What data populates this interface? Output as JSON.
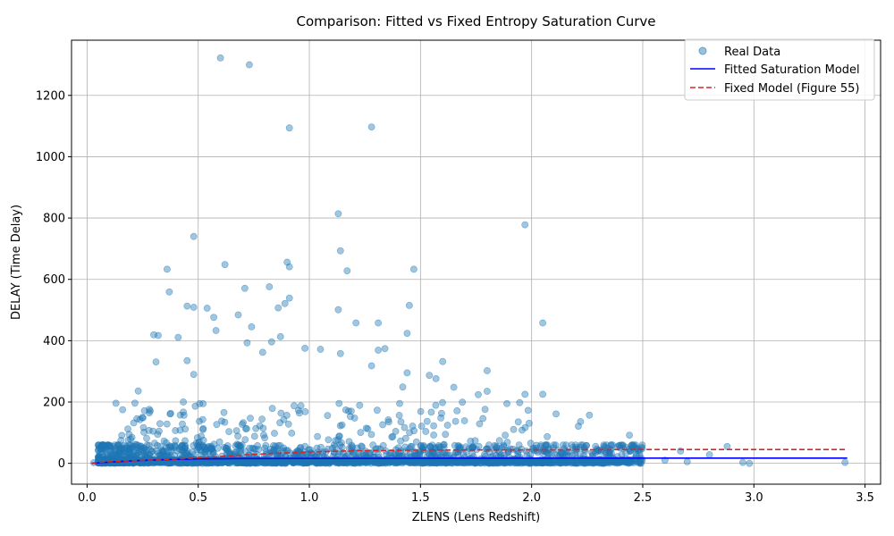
{
  "chart_data": {
    "type": "scatter",
    "title": "Comparison: Fitted vs Fixed Entropy Saturation Curve",
    "xlabel": "ZLENS (Lens Redshift)",
    "ylabel": "DELAY (Time Delay)",
    "xlim": [
      -0.07,
      3.57
    ],
    "ylim": [
      -68,
      1380
    ],
    "x_ticks": [
      "0.0",
      "0.5",
      "1.0",
      "1.5",
      "2.0",
      "2.5",
      "3.0",
      "3.5"
    ],
    "y_ticks": [
      "0",
      "200",
      "400",
      "600",
      "800",
      "1000",
      "1200"
    ],
    "grid": true,
    "legend_position": "top-right",
    "colors": {
      "scatter": "#1f77b4",
      "fitted": "#0000ff",
      "fixed": "#d62728"
    },
    "series": [
      {
        "name": "Real Data",
        "kind": "scatter",
        "note_density": "dense cluster of points between z 0.1 and 2.4 with delay 0-200",
        "points": [
          [
            0.6,
            1322
          ],
          [
            0.73,
            1300
          ],
          [
            0.91,
            1094
          ],
          [
            1.28,
            1097
          ],
          [
            1.13,
            814
          ],
          [
            1.97,
            778
          ],
          [
            0.48,
            740
          ],
          [
            0.9,
            656
          ],
          [
            0.91,
            641
          ],
          [
            0.62,
            648
          ],
          [
            0.36,
            633
          ],
          [
            1.47,
            633
          ],
          [
            1.17,
            628
          ],
          [
            1.14,
            693
          ],
          [
            0.82,
            576
          ],
          [
            0.71,
            571
          ],
          [
            0.37,
            559
          ],
          [
            0.91,
            539
          ],
          [
            0.89,
            521
          ],
          [
            0.45,
            513
          ],
          [
            0.48,
            509
          ],
          [
            0.54,
            506
          ],
          [
            0.86,
            507
          ],
          [
            1.13,
            501
          ],
          [
            1.45,
            515
          ],
          [
            0.68,
            484
          ],
          [
            0.57,
            476
          ],
          [
            1.21,
            458
          ],
          [
            1.31,
            458
          ],
          [
            2.05,
            458
          ],
          [
            0.58,
            433
          ],
          [
            0.74,
            445
          ],
          [
            0.3,
            419
          ],
          [
            0.32,
            417
          ],
          [
            0.41,
            411
          ],
          [
            0.87,
            413
          ],
          [
            1.44,
            424
          ],
          [
            0.83,
            396
          ],
          [
            0.72,
            393
          ],
          [
            0.98,
            375
          ],
          [
            1.34,
            374
          ],
          [
            1.31,
            369
          ],
          [
            1.05,
            372
          ],
          [
            0.79,
            362
          ],
          [
            1.14,
            358
          ],
          [
            0.45,
            335
          ],
          [
            0.31,
            331
          ],
          [
            1.6,
            332
          ],
          [
            1.28,
            318
          ],
          [
            1.8,
            302
          ],
          [
            0.48,
            290
          ],
          [
            1.54,
            287
          ],
          [
            1.44,
            295
          ],
          [
            1.57,
            276
          ],
          [
            1.42,
            249
          ],
          [
            1.8,
            235
          ],
          [
            1.76,
            224
          ],
          [
            1.97,
            225
          ],
          [
            1.65,
            248
          ],
          [
            2.05,
            225
          ],
          [
            2.26,
            157
          ],
          [
            2.11,
            161
          ],
          [
            2.22,
            136
          ],
          [
            1.94,
            135
          ],
          [
            2.44,
            92
          ],
          [
            2.07,
            87
          ],
          [
            2.21,
            121
          ],
          [
            2.88,
            55
          ],
          [
            2.67,
            40
          ],
          [
            2.8,
            28
          ],
          [
            2.95,
            3
          ],
          [
            2.98,
            0
          ],
          [
            3.41,
            3
          ],
          [
            2.6,
            10
          ],
          [
            2.7,
            5
          ],
          [
            0.13,
            196
          ],
          [
            0.23,
            236
          ],
          [
            0.16,
            175
          ],
          [
            0.28,
            176
          ],
          [
            0.21,
            132
          ],
          [
            0.1,
            59
          ],
          [
            0.08,
            54
          ],
          [
            0.05,
            20
          ],
          [
            0.07,
            10
          ],
          [
            0.03,
            2
          ]
        ]
      },
      {
        "name": "Fitted Saturation Model",
        "kind": "line",
        "x": [
          0.02,
          0.1,
          0.2,
          0.3,
          0.4,
          0.5,
          0.7,
          1.0,
          1.5,
          2.0,
          3.0,
          3.42
        ],
        "y": [
          0,
          4,
          8,
          11,
          13,
          14.5,
          15.5,
          16,
          16.5,
          16.8,
          17,
          17
        ]
      },
      {
        "name": "Fixed Model (Figure 55)",
        "kind": "line",
        "x": [
          0.02,
          0.1,
          0.2,
          0.3,
          0.4,
          0.5,
          0.6,
          0.7,
          0.8,
          0.9,
          1.0,
          1.2,
          1.5,
          2.0,
          2.5,
          3.0,
          3.42
        ],
        "y": [
          1,
          5,
          8,
          11,
          14,
          18,
          22,
          27,
          31,
          34,
          37,
          41,
          43,
          44,
          45,
          45,
          45
        ]
      }
    ]
  }
}
